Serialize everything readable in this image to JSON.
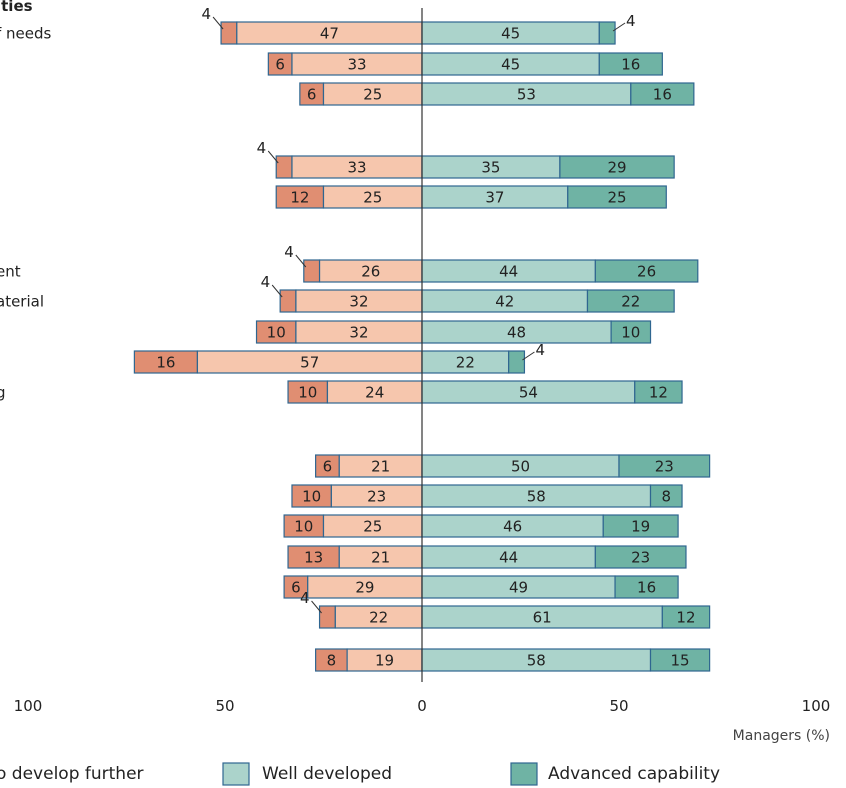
{
  "chart_data": {
    "type": "bar",
    "orientation": "horizontal-diverging",
    "section_heading": "ities",
    "category_labels": [
      {
        "row": 0,
        "text": "f needs"
      },
      {
        "row": 5,
        "text": "ent"
      },
      {
        "row": 6,
        "text": "aterial"
      },
      {
        "row": 9,
        "text": "g"
      }
    ],
    "series": [
      {
        "name": "o develop further",
        "color": "#e08e72",
        "side": "left"
      },
      {
        "name": "",
        "color": "#f6c6ad",
        "side": "left"
      },
      {
        "name": "Well developed",
        "color": "#abd3cb",
        "side": "right"
      },
      {
        "name": "Advanced capability",
        "color": "#6fb3a4",
        "side": "right"
      }
    ],
    "rows": [
      {
        "values": [
          4,
          47,
          45,
          4
        ],
        "label_out": [
          true,
          false,
          false,
          true
        ]
      },
      {
        "values": [
          6,
          33,
          45,
          16
        ]
      },
      {
        "values": [
          6,
          25,
          53,
          16
        ]
      },
      {
        "values": [
          4,
          33,
          35,
          29
        ],
        "label_out": [
          true,
          false,
          false,
          false
        ]
      },
      {
        "values": [
          12,
          25,
          37,
          25
        ]
      },
      {
        "values": [
          4,
          26,
          44,
          26
        ],
        "label_out": [
          true,
          false,
          false,
          false
        ]
      },
      {
        "values": [
          4,
          32,
          42,
          22
        ],
        "label_out": [
          true,
          false,
          false,
          false
        ]
      },
      {
        "values": [
          10,
          32,
          48,
          10
        ]
      },
      {
        "values": [
          16,
          57,
          22,
          4
        ],
        "label_out": [
          false,
          false,
          false,
          true
        ]
      },
      {
        "values": [
          10,
          24,
          54,
          12
        ]
      },
      {
        "values": [
          6,
          21,
          50,
          23
        ]
      },
      {
        "values": [
          10,
          23,
          58,
          8
        ]
      },
      {
        "values": [
          10,
          25,
          46,
          19
        ]
      },
      {
        "values": [
          13,
          21,
          44,
          23
        ]
      },
      {
        "values": [
          6,
          29,
          49,
          16
        ]
      },
      {
        "values": [
          4,
          22,
          61,
          12
        ],
        "label_out": [
          true,
          false,
          false,
          false
        ]
      },
      {
        "values": [
          8,
          19,
          58,
          15
        ]
      }
    ],
    "x_ticks": [
      {
        "value": -100,
        "label": "100"
      },
      {
        "value": -50,
        "label": "50"
      },
      {
        "value": 0,
        "label": "0"
      },
      {
        "value": 50,
        "label": "50"
      },
      {
        "value": 100,
        "label": "100"
      }
    ],
    "xlabel": "Managers (%)",
    "xlim": [
      -100,
      100
    ],
    "grid": false,
    "legend_position": "bottom"
  },
  "colors": {
    "bar_stroke": "#2f6690",
    "axis": "#333333"
  }
}
